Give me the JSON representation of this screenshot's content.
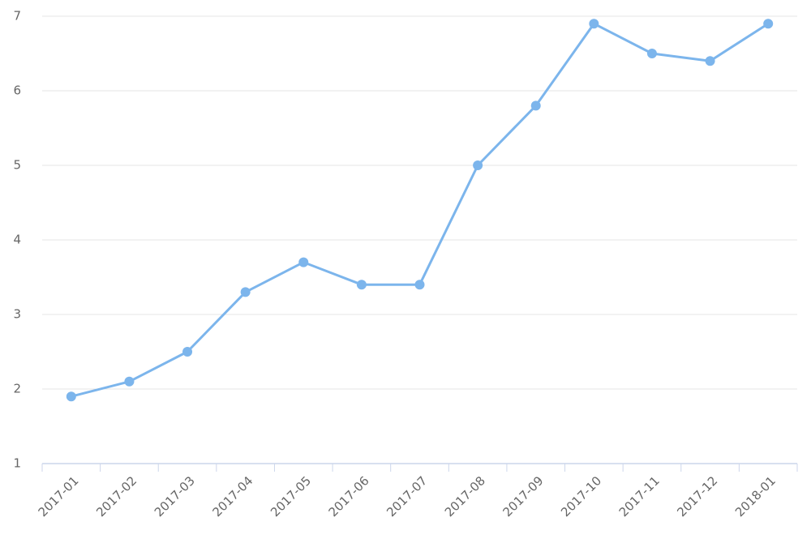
{
  "chart_data": {
    "type": "line",
    "categories": [
      "2017-01",
      "2017-02",
      "2017-03",
      "2017-04",
      "2017-05",
      "2017-06",
      "2017-07",
      "2017-08",
      "2017-09",
      "2017-10",
      "2017-11",
      "2017-12",
      "2018-01"
    ],
    "series": [
      {
        "color": "#7cb5ec",
        "values": [
          1.9,
          2.1,
          2.5,
          3.3,
          3.7,
          3.4,
          3.4,
          5.0,
          5.8,
          6.9,
          6.5,
          6.4,
          6.9
        ]
      }
    ],
    "ylim": [
      1,
      7
    ],
    "yticks": [
      1,
      2,
      3,
      4,
      5,
      6,
      7
    ],
    "grid": true
  }
}
